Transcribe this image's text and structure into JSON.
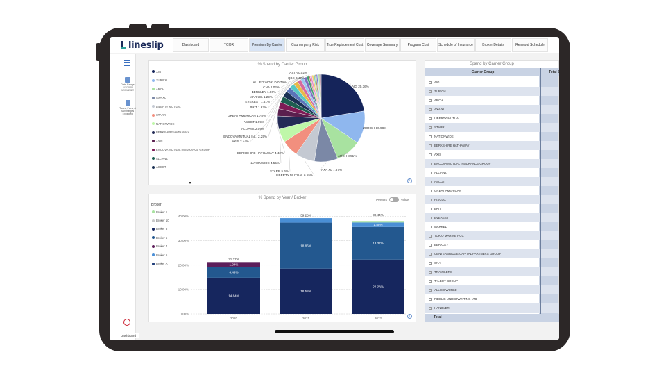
{
  "app": {
    "logo_text": "lineslip"
  },
  "nav_tabs": [
    {
      "label": "Dashboard",
      "active": false
    },
    {
      "label": "TCOR",
      "active": false
    },
    {
      "label": "Premium By Carrier",
      "active": true
    },
    {
      "label": "Counterparty Risk",
      "active": false
    },
    {
      "label": "True Replacement Cost",
      "active": false
    },
    {
      "label": "Coverage Summary",
      "active": false
    },
    {
      "label": "Program Cost",
      "active": false
    },
    {
      "label": "Schedule of Insurance",
      "active": false
    },
    {
      "label": "Broker Details",
      "active": false
    },
    {
      "label": "Renewal Schedule",
      "active": false
    }
  ],
  "rail": {
    "date_range_label": "Date Range",
    "date_from": "1/1/2020",
    "date_to": "12/31/2022",
    "filter_label": "Taxes, Fees, & Surcharges",
    "filter_value": "Excluded",
    "bottom_tab": "Dashboard"
  },
  "pie": {
    "title": "% Spend by Carrier Group",
    "legend": [
      {
        "name": "AIG",
        "color": "#15245a"
      },
      {
        "name": "ZURICH",
        "color": "#8fb7ee"
      },
      {
        "name": "ARCH",
        "color": "#a8e2a0"
      },
      {
        "name": "AXA XL",
        "color": "#7b88a6"
      },
      {
        "name": "LIBERTY MUTUAL",
        "color": "#c4c9d2"
      },
      {
        "name": "STARR",
        "color": "#f28f7e"
      },
      {
        "name": "NATIONWIDE",
        "color": "#bff7a9"
      },
      {
        "name": "BERKSHIRE HATHAWAY",
        "color": "#232b56"
      },
      {
        "name": "AXIS",
        "color": "#5a1f4e"
      },
      {
        "name": "ENCOVA MUTUAL INSURANCE GROUP",
        "color": "#7e1b56"
      },
      {
        "name": "ALLIANZ",
        "color": "#1d5e50"
      },
      {
        "name": "ASCOT",
        "color": "#1a3154"
      }
    ]
  },
  "chart_data": [
    {
      "type": "pie",
      "title": "% Spend by Carrier Group",
      "slices": [
        {
          "label": "AIG 20.36%",
          "value": 20.36,
          "color": "#15245a"
        },
        {
          "label": "ZURICH 10.98%",
          "value": 10.98,
          "color": "#8fb7ee"
        },
        {
          "label": "ARCH 8.51%",
          "value": 8.51,
          "color": "#a8e2a0"
        },
        {
          "label": "AXA XL 7.87%",
          "value": 7.87,
          "color": "#7b88a6"
        },
        {
          "label": "LIBERTY MUTUAL 6.55%",
          "value": 6.55,
          "color": "#c4c9d2"
        },
        {
          "label": "STARR 5.6%",
          "value": 5.6,
          "color": "#f28f7e"
        },
        {
          "label": "NATIONWIDE 4.55%",
          "value": 4.55,
          "color": "#bff7a9"
        },
        {
          "label": "BERKSHIRE HATHAWAY 4.42%",
          "value": 4.42,
          "color": "#232b56"
        },
        {
          "label": "AXIS 2.44%",
          "value": 2.44,
          "color": "#5a1f4e"
        },
        {
          "label": "ENCOVA MUTUAL IN... 2.25%",
          "value": 2.25,
          "color": "#7e1b56"
        },
        {
          "label": "ALLIANZ 2.09%",
          "value": 2.09,
          "color": "#1d5e50"
        },
        {
          "label": "ASCOT 1.99%",
          "value": 1.99,
          "color": "#1a3154"
        },
        {
          "label": "GREAT AMERICAN 1.78%",
          "value": 1.78,
          "color": "#5a74b8"
        },
        {
          "label": "BRIT 1.62%",
          "value": 1.62,
          "color": "#56c8c4"
        },
        {
          "label": "EVEREST 1.51%",
          "value": 1.51,
          "color": "#e6b94a"
        },
        {
          "label": "MARKEL 1.29%",
          "value": 1.29,
          "color": "#d46a9f"
        },
        {
          "label": "BERKLEY 1.06%",
          "value": 1.06,
          "color": "#9bc8ee"
        },
        {
          "label": "CNA 1.02%",
          "value": 1.02,
          "color": "#7f6fc2"
        },
        {
          "label": "ALLIED WORLD 0.79%",
          "value": 0.79,
          "color": "#3f9e72"
        },
        {
          "label": "QBE 0.42%",
          "value": 0.42,
          "color": "#c9786b"
        },
        {
          "label": "ASTA 0.02%",
          "value": 0.02,
          "color": "#999999"
        },
        {
          "label": "",
          "value": 0.6,
          "color": "#e28fd0"
        },
        {
          "label": "",
          "value": 0.55,
          "color": "#f4d06f"
        },
        {
          "label": "",
          "value": 0.5,
          "color": "#8ad1b8"
        },
        {
          "label": "",
          "value": 0.45,
          "color": "#b58c5e"
        },
        {
          "label": "",
          "value": 0.4,
          "color": "#6e7dd6"
        },
        {
          "label": "",
          "value": 0.35,
          "color": "#d0d0d0"
        },
        {
          "label": "",
          "value": 0.3,
          "color": "#7cd36b"
        },
        {
          "label": "",
          "value": 0.25,
          "color": "#a14a6a"
        },
        {
          "label": "",
          "value": 0.2,
          "color": "#3b6d9e"
        },
        {
          "label": "",
          "value": 0.15,
          "color": "#e8a2a2"
        }
      ]
    },
    {
      "type": "bar",
      "title": "% Spend by Year / Broker",
      "categories": [
        "2020",
        "2021",
        "2022"
      ],
      "ylim": [
        0,
        45
      ],
      "yticks": [
        "0.00%",
        "10.00%",
        "20.00%",
        "30.00%",
        "40.00%"
      ],
      "ytick_values": [
        0,
        10,
        20,
        30,
        40
      ],
      "totals": [
        "21.27%",
        "39.28%",
        "39.44%"
      ],
      "total_values": [
        21.27,
        39.28,
        39.44
      ],
      "series": [
        {
          "name": "Broker 1",
          "color": "#16265e",
          "values": [
            14.84,
            18.58,
            22.28
          ],
          "labels": [
            "14.84%",
            "18.58%",
            "22.28%"
          ]
        },
        {
          "name": "Broker 3",
          "color": "#23588f",
          "values": [
            4.49,
            18.85,
            13.37
          ],
          "labels": [
            "4.49%",
            "18.85%",
            "13.37%"
          ]
        },
        {
          "name": "Broker 4",
          "color": "#5d1e5a",
          "values": [
            1.94,
            0,
            0
          ],
          "labels": [
            "1.94%",
            "",
            ""
          ]
        },
        {
          "name": "Broker 6",
          "color": "#4a8fd6",
          "values": [
            0,
            1.85,
            1.85
          ],
          "labels": [
            "",
            "",
            "1.85%"
          ]
        },
        {
          "name": "Broker 10",
          "color": "#a8e2a0",
          "values": [
            0,
            0,
            0.6
          ],
          "labels": [
            "",
            "",
            ""
          ]
        }
      ]
    }
  ],
  "bar": {
    "title": "% Spend by Year / Broker",
    "toggle_left": "Percent",
    "toggle_right": "Value",
    "legend_title": "Broker",
    "legend": [
      {
        "name": "Broker 1",
        "color": "#a8e2a0"
      },
      {
        "name": "Broker 10",
        "color": "#c9c9c9"
      },
      {
        "name": "Broker 3",
        "color": "#16265e"
      },
      {
        "name": "Broker 5",
        "color": "#23588f"
      },
      {
        "name": "Broker 4",
        "color": "#5d1e5a"
      },
      {
        "name": "Broker 6",
        "color": "#4a8fd6"
      },
      {
        "name": "Broker A",
        "color": "#1f3d7a"
      }
    ]
  },
  "table": {
    "title": "Spend by Carrier Group",
    "col1": "Carrier Group",
    "col2": "Total S",
    "rows": [
      "AIG",
      "ZURICH",
      "ARCH",
      "AXA XL",
      "LIBERTY MUTUAL",
      "STARR",
      "NATIONWIDE",
      "BERKSHIRE HATHAWAY",
      "AXIS",
      "ENCOVA MUTUAL INSURANCE GROUP",
      "ALLIANZ",
      "ASCOT",
      "GREAT AMERICAN",
      "HISCOX",
      "BRIT",
      "EVEREST",
      "MARKEL",
      "TOKIO MARINE HCC",
      "BERKLEY",
      "CENTERBRIDGE CAPITAL PARTNERS GROUP",
      "CNA",
      "TRAVELERS",
      "TALBOT GROUP",
      "ALLIED WORLD",
      "FIDELIS UNDERWRITING LTD",
      "HANOVER"
    ],
    "total_label": "Total"
  }
}
